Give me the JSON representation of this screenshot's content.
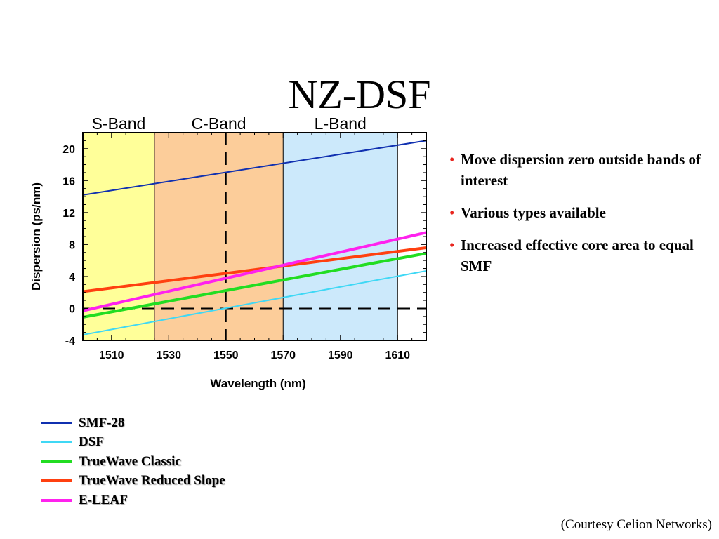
{
  "slide": {
    "title": "NZ-DSF",
    "credit": "(Courtesy Celion Networks)"
  },
  "bullets": [
    "Move dispersion zero outside bands of interest",
    "Various types available",
    "Increased effective core area to equal SMF"
  ],
  "colors": {
    "bullet": "#e8261f",
    "s_band": "#ffff99",
    "c_band": "#fccd9a",
    "l_band": "#cce9fb"
  },
  "chart_data": {
    "type": "line",
    "xlabel": "Wavelength (nm)",
    "ylabel": "Dispersion (ps/nm)",
    "xlim": [
      1500,
      1620
    ],
    "ylim": [
      -4,
      22
    ],
    "x_ticks": [
      1510,
      1530,
      1550,
      1570,
      1590,
      1610
    ],
    "y_ticks": [
      -4,
      0,
      4,
      8,
      12,
      16,
      20
    ],
    "bands": [
      {
        "name": "S-Band",
        "from": 1500,
        "to": 1525,
        "color": "#ffff99"
      },
      {
        "name": "C-Band",
        "from": 1525,
        "to": 1570,
        "color": "#fccd9a"
      },
      {
        "name": "L-Band",
        "from": 1570,
        "to": 1610,
        "color": "#cce9fb"
      }
    ],
    "reference_lines": {
      "zero_dispersion": 0,
      "wavelength": 1550
    },
    "series": [
      {
        "name": "SMF-28",
        "color": "#1030b0",
        "width": 2,
        "x": [
          1500,
          1620
        ],
        "y": [
          14.2,
          21.0
        ]
      },
      {
        "name": "DSF",
        "color": "#3fd8f5",
        "width": 2,
        "x": [
          1500,
          1620
        ],
        "y": [
          -3.3,
          4.7
        ]
      },
      {
        "name": "TrueWave Classic",
        "color": "#22dd22",
        "width": 4,
        "x": [
          1500,
          1620
        ],
        "y": [
          -1.1,
          6.9
        ]
      },
      {
        "name": "TrueWave Reduced Slope",
        "color": "#ff4010",
        "width": 4,
        "x": [
          1500,
          1620
        ],
        "y": [
          2.1,
          7.6
        ]
      },
      {
        "name": "E-LEAF",
        "color": "#ff22ee",
        "width": 4,
        "x": [
          1500,
          1620
        ],
        "y": [
          -0.3,
          9.5
        ]
      }
    ],
    "grid": false
  }
}
